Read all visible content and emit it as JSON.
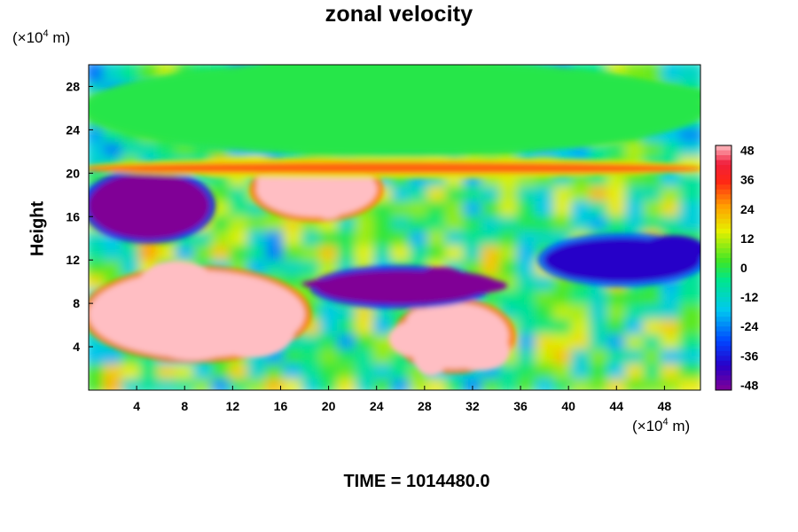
{
  "chart_data": {
    "type": "heatmap",
    "title": "zonal velocity",
    "ylabel": "Height",
    "xlabel": "",
    "x_unit_prefix": "(×10",
    "x_unit_exp": "4",
    "x_unit_suffix": " m)",
    "y_unit_prefix": "(×10",
    "y_unit_exp": "4",
    "y_unit_suffix": " m)",
    "xlim": [
      0,
      51
    ],
    "ylim": [
      0,
      30
    ],
    "x_ticks": [
      4,
      8,
      12,
      16,
      20,
      24,
      28,
      32,
      36,
      40,
      44,
      48
    ],
    "x_tick_labels": [
      "4",
      "8",
      "12",
      "16",
      "20",
      "24",
      "28",
      "32",
      "36",
      "40",
      "44",
      "48"
    ],
    "y_ticks": [
      4,
      8,
      12,
      16,
      20,
      24,
      28
    ],
    "y_tick_labels": [
      "4",
      "8",
      "12",
      "16",
      "20",
      "24",
      "28"
    ],
    "colorbar": {
      "range": [
        -50,
        50
      ],
      "ticks": [
        48,
        36,
        24,
        12,
        0,
        -12,
        -24,
        -36,
        -48
      ],
      "tick_labels": [
        "48",
        "36",
        "24",
        "12",
        "0",
        "-12",
        "-24",
        "-36",
        "-48"
      ],
      "colormap": "rainbow: purple(low) → blue → cyan → green → yellow → orange → red → pink(high)"
    },
    "field_features": [
      {
        "x": [
          0,
          10
        ],
        "y": [
          14,
          20
        ],
        "value": -50
      },
      {
        "x": [
          14,
          24
        ],
        "y": [
          16,
          21
        ],
        "value": 50
      },
      {
        "x": [
          0,
          18
        ],
        "y": [
          3,
          11
        ],
        "value": 50
      },
      {
        "x": [
          26,
          35
        ],
        "y": [
          2,
          8
        ],
        "value": 50
      },
      {
        "x": [
          19,
          33
        ],
        "y": [
          8,
          11
        ],
        "value": -50
      },
      {
        "x": [
          0,
          51
        ],
        "y": [
          20,
          21
        ],
        "value": 30
      },
      {
        "x": [
          0,
          51
        ],
        "y": [
          22,
          30
        ],
        "value": 0
      },
      {
        "x": [
          38,
          51
        ],
        "y": [
          10,
          14
        ],
        "value": -40
      }
    ]
  },
  "footer": {
    "time_label": "TIME = 1014480.0"
  }
}
